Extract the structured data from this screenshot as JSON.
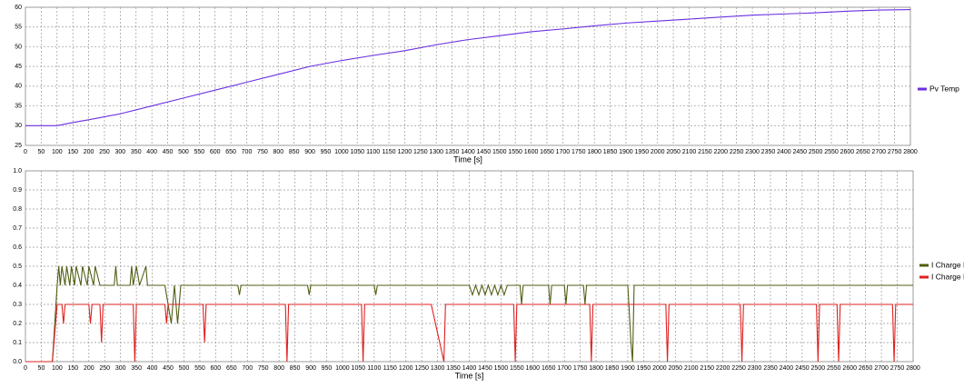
{
  "chart_data": [
    {
      "type": "line",
      "xlabel": "Time [s]",
      "grid": true,
      "legend": "right",
      "xlim": [
        0,
        2800
      ],
      "ylim": [
        25,
        60
      ],
      "xticks": [
        0,
        50,
        100,
        150,
        200,
        250,
        300,
        350,
        400,
        450,
        500,
        550,
        600,
        650,
        700,
        750,
        800,
        850,
        900,
        950,
        1000,
        1050,
        1100,
        1150,
        1200,
        1250,
        1300,
        1350,
        1400,
        1450,
        1500,
        1550,
        1600,
        1650,
        1700,
        1750,
        1800,
        1850,
        1900,
        1950,
        2000,
        2050,
        2100,
        2150,
        2200,
        2250,
        2300,
        2350,
        2400,
        2450,
        2500,
        2550,
        2600,
        2650,
        2700,
        2750,
        2800
      ],
      "yticks": [
        25,
        30,
        35,
        40,
        45,
        50,
        55,
        60
      ],
      "series": [
        {
          "name": "Pv Temp",
          "color": "#6a2fe0",
          "x": [
            0,
            100,
            150,
            200,
            300,
            400,
            500,
            600,
            700,
            800,
            900,
            1000,
            1100,
            1200,
            1300,
            1400,
            1500,
            1600,
            1700,
            1800,
            1900,
            2000,
            2100,
            2200,
            2300,
            2400,
            2500,
            2600,
            2700,
            2800
          ],
          "values": [
            30,
            30,
            30.8,
            31.5,
            33,
            35,
            37,
            39,
            41,
            43,
            45,
            46.5,
            47.8,
            49,
            50.5,
            51.8,
            52.8,
            53.8,
            54.5,
            55.3,
            56,
            56.5,
            57,
            57.5,
            58,
            58.3,
            58.6,
            59,
            59.3,
            59.4
          ]
        }
      ]
    },
    {
      "type": "line",
      "xlabel": "Time [s]",
      "grid": true,
      "legend": "right",
      "xlim": [
        0,
        2800
      ],
      "ylim": [
        0,
        1
      ],
      "xticks": [
        0,
        50,
        100,
        150,
        200,
        250,
        300,
        350,
        400,
        450,
        500,
        550,
        600,
        650,
        700,
        750,
        800,
        850,
        900,
        950,
        1000,
        1050,
        1100,
        1150,
        1200,
        1250,
        1300,
        1350,
        1400,
        1450,
        1500,
        1550,
        1600,
        1650,
        1700,
        1750,
        1800,
        1850,
        1900,
        1950,
        2000,
        2050,
        2100,
        2150,
        2200,
        2250,
        2300,
        2350,
        2400,
        2450,
        2500,
        2550,
        2600,
        2650,
        2700,
        2750,
        2800
      ],
      "yticks": [
        {
          "value": 0,
          "label": "0.0"
        },
        0.1,
        0.2,
        0.3,
        0.4,
        0.5,
        0.6,
        0.7,
        0.8,
        0.9,
        {
          "value": 1,
          "label": "1.0"
        }
      ],
      "series": [
        {
          "name": "I Charge Mono",
          "color": "#4f5f14",
          "x": [
            0,
            85,
            100,
            105,
            110,
            115,
            125,
            130,
            140,
            145,
            155,
            160,
            175,
            180,
            195,
            200,
            215,
            220,
            235,
            280,
            285,
            290,
            330,
            335,
            340,
            350,
            360,
            380,
            385,
            440,
            460,
            470,
            480,
            490,
            670,
            675,
            680,
            890,
            895,
            900,
            1100,
            1105,
            1110,
            1400,
            1410,
            1420,
            1430,
            1440,
            1450,
            1460,
            1470,
            1480,
            1490,
            1500,
            1510,
            1520,
            1560,
            1565,
            1570,
            1650,
            1655,
            1660,
            1700,
            1705,
            1710,
            1760,
            1765,
            1770,
            1900,
            1910,
            1915,
            1920,
            2800
          ],
          "values": [
            0,
            0,
            0.4,
            0.5,
            0.4,
            0.5,
            0.4,
            0.5,
            0.4,
            0.5,
            0.4,
            0.5,
            0.4,
            0.5,
            0.4,
            0.5,
            0.4,
            0.5,
            0.4,
            0.4,
            0.5,
            0.4,
            0.4,
            0.5,
            0.4,
            0.5,
            0.4,
            0.5,
            0.4,
            0.4,
            0.2,
            0.4,
            0.2,
            0.4,
            0.4,
            0.35,
            0.4,
            0.4,
            0.35,
            0.4,
            0.4,
            0.35,
            0.4,
            0.4,
            0.35,
            0.4,
            0.35,
            0.4,
            0.35,
            0.4,
            0.35,
            0.4,
            0.35,
            0.4,
            0.35,
            0.4,
            0.4,
            0.3,
            0.4,
            0.4,
            0.3,
            0.4,
            0.4,
            0.3,
            0.4,
            0.4,
            0.3,
            0.4,
            0.4,
            0.1,
            0,
            0.4,
            0.4
          ]
        },
        {
          "name": "I Charge Poly",
          "color": "#e02020",
          "x": [
            0,
            85,
            100,
            115,
            120,
            125,
            200,
            205,
            210,
            235,
            240,
            245,
            340,
            345,
            350,
            440,
            445,
            450,
            560,
            565,
            570,
            820,
            825,
            830,
            1060,
            1065,
            1070,
            1280,
            1320,
            1325,
            1540,
            1545,
            1550,
            1780,
            1785,
            1790,
            2020,
            2025,
            2030,
            2255,
            2260,
            2265,
            2495,
            2500,
            2505,
            2560,
            2565,
            2570,
            2735,
            2740,
            2745,
            2800
          ],
          "values": [
            0,
            0,
            0.3,
            0.3,
            0.2,
            0.3,
            0.3,
            0.2,
            0.3,
            0.3,
            0.1,
            0.3,
            0.3,
            0,
            0.3,
            0.3,
            0.2,
            0.3,
            0.3,
            0.1,
            0.3,
            0.3,
            0,
            0.3,
            0.3,
            0,
            0.3,
            0.3,
            0,
            0.3,
            0.3,
            0,
            0.3,
            0.3,
            0,
            0.3,
            0.3,
            0,
            0.3,
            0.3,
            0,
            0.3,
            0.3,
            0,
            0.3,
            0.3,
            0,
            0.3,
            0.3,
            0,
            0.3,
            0.3
          ]
        }
      ]
    }
  ]
}
